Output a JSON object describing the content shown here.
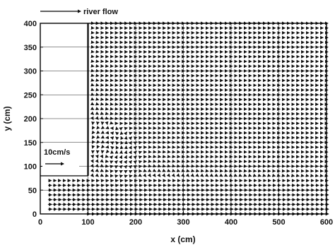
{
  "chart_data": {
    "type": "quiver",
    "title": "",
    "xlabel": "x (cm)",
    "ylabel": "y (cm)",
    "xlim": [
      0,
      600
    ],
    "ylim": [
      0,
      400
    ],
    "xticks": [
      "0",
      "100",
      "200",
      "300",
      "400",
      "500",
      "600"
    ],
    "yticks": [
      "0",
      "50",
      "100",
      "150",
      "200",
      "250",
      "300",
      "350",
      "400"
    ],
    "grid": true,
    "annotations": {
      "flow_direction": "river flow",
      "reference_vector": "10cm/s"
    },
    "groyne": {
      "x": 100,
      "y_from": 80,
      "y_to": 400
    },
    "recirculation_center": {
      "x": 140,
      "y": 125
    },
    "vector_field": {
      "x_start": 100,
      "x_end": 600,
      "x_step": 10,
      "y_start": 0,
      "y_end": 400,
      "y_step": 10,
      "approach_channel": {
        "x_start": 0,
        "x_end": 100,
        "y_start": 0,
        "y_end": 80
      },
      "reference_speed": 10
    }
  }
}
